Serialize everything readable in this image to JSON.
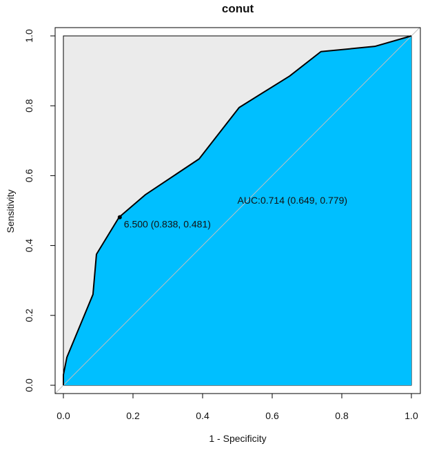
{
  "chart_data": {
    "type": "area",
    "title": "conut",
    "xlabel": "1 - Specificity",
    "ylabel": "Sensitivity",
    "xlim": [
      0.0,
      1.0
    ],
    "ylim": [
      0.0,
      1.0
    ],
    "x_ticks": [
      "0.0",
      "0.2",
      "0.4",
      "0.6",
      "0.8",
      "1.0"
    ],
    "y_ticks": [
      "0.0",
      "0.2",
      "0.4",
      "0.6",
      "0.8",
      "1.0"
    ],
    "grid": false,
    "legend": "none",
    "series": [
      {
        "points": [
          [
            0.0,
            0.0
          ],
          [
            0.0,
            0.03
          ],
          [
            0.01,
            0.08
          ],
          [
            0.085,
            0.26
          ],
          [
            0.095,
            0.375
          ],
          [
            0.16,
            0.481
          ],
          [
            0.235,
            0.545
          ],
          [
            0.39,
            0.648
          ],
          [
            0.505,
            0.795
          ],
          [
            0.65,
            0.885
          ],
          [
            0.74,
            0.955
          ],
          [
            0.895,
            0.97
          ],
          [
            1.0,
            1.0
          ]
        ]
      }
    ],
    "diagonal": [
      [
        0.0,
        0.0
      ],
      [
        1.0,
        1.0
      ]
    ],
    "threshold_point": {
      "x": 0.162,
      "y": 0.481,
      "label": "6.500 (0.838, 0.481)"
    },
    "auc_label": {
      "text": "AUC:0.714 (0.649, 0.779)",
      "x": 0.5,
      "y": 0.48
    },
    "colors": {
      "fill": "#00bfff",
      "background_region": "#ebebeb",
      "curve": "#000000",
      "diagonal": "#c0c0c0",
      "axis": "#000000"
    }
  }
}
